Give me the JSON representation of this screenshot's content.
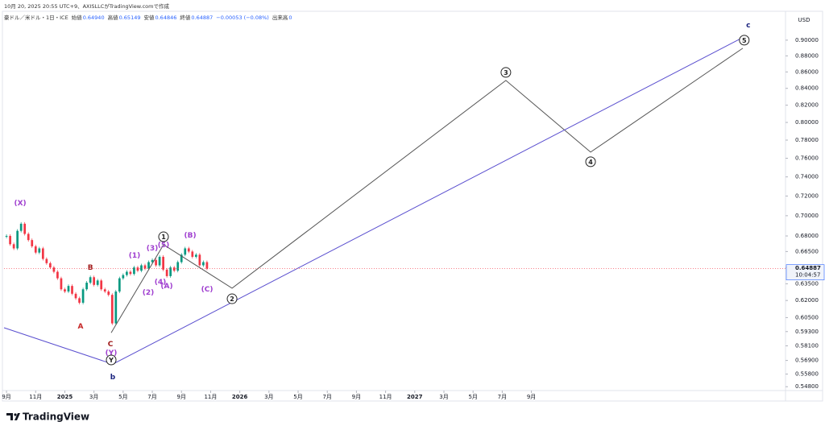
{
  "header": {
    "created": "10月 20, 2025 20:55 UTC+9、AXISLLCがTradingView.comで作成",
    "symbol": "豪ドル／米ドル・1日・ICE",
    "ohlc": [
      {
        "label": "始値",
        "value": "0.64940"
      },
      {
        "label": "高値",
        "value": "0.65149"
      },
      {
        "label": "安値",
        "value": "0.64846"
      },
      {
        "label": "終値",
        "value": "0.64887"
      },
      {
        "label": "",
        "value": "−0.00053 (−0.08%)"
      },
      {
        "label": "出来高",
        "value": "0"
      }
    ]
  },
  "brand": "TradingView",
  "chart_data": {
    "type": "candlestick",
    "currency": "USD",
    "log_scale": true,
    "up_color": "#089981",
    "down_color": "#f23645",
    "x": [
      8,
      8.25,
      8.5,
      8.75,
      9,
      9.25,
      9.5,
      9.75,
      10,
      10.25,
      10.5,
      10.75,
      11,
      11.25,
      11.5,
      11.75,
      12,
      12.25,
      12.5,
      12.75,
      13,
      13.25,
      13.5,
      13.75,
      14,
      14.25,
      14.5,
      14.75,
      15,
      15.25,
      15.5,
      15.75,
      16,
      16.25,
      16.5,
      16.75,
      17,
      17.25,
      17.5,
      17.75,
      18,
      18.25,
      18.5,
      18.75,
      19,
      19.25,
      19.5,
      19.75,
      20,
      20.25,
      20.5,
      20.75,
      21,
      21.25,
      21.5,
      21.75
    ],
    "values": [
      0.68,
      0.672,
      0.668,
      0.685,
      0.692,
      0.682,
      0.676,
      0.67,
      0.664,
      0.668,
      0.658,
      0.654,
      0.65,
      0.646,
      0.64,
      0.63,
      0.628,
      0.633,
      0.626,
      0.622,
      0.618,
      0.63,
      0.636,
      0.641,
      0.634,
      0.638,
      0.63,
      0.628,
      0.625,
      0.6,
      0.628,
      0.64,
      0.643,
      0.646,
      0.644,
      0.65,
      0.647,
      0.652,
      0.649,
      0.655,
      0.657,
      0.652,
      0.66,
      0.648,
      0.642,
      0.65,
      0.647,
      0.655,
      0.662,
      0.668,
      0.665,
      0.66,
      0.662,
      0.652,
      0.655,
      0.64887
    ],
    "last_price": 0.64887,
    "countdown": "10:04:57",
    "xlim": [
      7.83,
      61.43
    ],
    "ylim": [
      0.545,
      0.938
    ],
    "xticks": [
      {
        "value": 8,
        "label": "9月"
      },
      {
        "value": 10,
        "label": "11月"
      },
      {
        "value": 12,
        "label": "2025"
      },
      {
        "value": 14,
        "label": "3月"
      },
      {
        "value": 16,
        "label": "5月"
      },
      {
        "value": 18,
        "label": "7月"
      },
      {
        "value": 20,
        "label": "9月"
      },
      {
        "value": 22,
        "label": "11月"
      },
      {
        "value": 24,
        "label": "2026"
      },
      {
        "value": 26,
        "label": "3月"
      },
      {
        "value": 28,
        "label": "5月"
      },
      {
        "value": 30,
        "label": "7月"
      },
      {
        "value": 32,
        "label": "9月"
      },
      {
        "value": 34,
        "label": "11月"
      },
      {
        "value": 36,
        "label": "2027"
      },
      {
        "value": 38,
        "label": "3月"
      },
      {
        "value": 40,
        "label": "5月"
      },
      {
        "value": 42,
        "label": "7月"
      },
      {
        "value": 44,
        "label": "9月"
      }
    ],
    "yticks": [
      {
        "value": 0.9,
        "label": "0.90000"
      },
      {
        "value": 0.88,
        "label": "0.88000"
      },
      {
        "value": 0.86,
        "label": "0.86000"
      },
      {
        "value": 0.84,
        "label": "0.84000"
      },
      {
        "value": 0.82,
        "label": "0.82000"
      },
      {
        "value": 0.8,
        "label": "0.80000"
      },
      {
        "value": 0.78,
        "label": "0.78000"
      },
      {
        "value": 0.76,
        "label": "0.76000"
      },
      {
        "value": 0.74,
        "label": "0.74000"
      },
      {
        "value": 0.72,
        "label": "0.72000"
      },
      {
        "value": 0.7,
        "label": "0.70000"
      },
      {
        "value": 0.68,
        "label": "0.68000"
      },
      {
        "value": 0.665,
        "label": "0.66500"
      },
      {
        "value": 0.65,
        "label": "0.65000"
      },
      {
        "value": 0.635,
        "label": "0.63500"
      },
      {
        "value": 0.62,
        "label": "0.62000"
      },
      {
        "value": 0.605,
        "label": "0.60500"
      },
      {
        "value": 0.593,
        "label": "0.59300"
      },
      {
        "value": 0.581,
        "label": "0.58100"
      },
      {
        "value": 0.569,
        "label": "0.56900"
      },
      {
        "value": 0.558,
        "label": "0.55800"
      },
      {
        "value": 0.548,
        "label": "0.54800"
      }
    ],
    "drawings": [
      {
        "color": "#555555",
        "x": [
          15.18,
          18.77,
          23.47,
          42.25,
          48.06,
          58.5
        ],
        "y": [
          0.592,
          0.6716,
          0.631,
          0.8496,
          0.7667,
          0.8897
        ]
      },
      {
        "color": "#5a4fcf",
        "x": [
          7.83,
          15.29,
          58.66
        ],
        "y": [
          0.5963,
          0.566,
          0.905
        ]
      }
    ],
    "annotations": [
      {
        "text": "(X)",
        "color": "#a040d0",
        "x": 8.94,
        "y": 0.713
      },
      {
        "text": "B",
        "color": "#a01c1c",
        "x": 13.75,
        "y": 0.65
      },
      {
        "text": "A",
        "color": "#c62828",
        "x": 13.08,
        "y": 0.5976
      },
      {
        "text": "C",
        "color": "#a01c1c",
        "x": 15.13,
        "y": 0.5826
      },
      {
        "text": "(Y)",
        "color": "#a040d0",
        "x": 15.18,
        "y": 0.5752
      },
      {
        "text": "Y",
        "color": "#222222",
        "x": 15.18,
        "y": 0.5694,
        "circled": true
      },
      {
        "text": "b",
        "color": "#1a237e",
        "x": 15.29,
        "y": 0.5557
      },
      {
        "text": "(1)",
        "color": "#a040d0",
        "x": 16.78,
        "y": 0.6615
      },
      {
        "text": "(2)",
        "color": "#a040d0",
        "x": 17.72,
        "y": 0.6273
      },
      {
        "text": "(3)",
        "color": "#a040d0",
        "x": 18.0,
        "y": 0.6684
      },
      {
        "text": "(4)",
        "color": "#a040d0",
        "x": 18.55,
        "y": 0.6368
      },
      {
        "text": "(5)",
        "color": "#a040d0",
        "x": 18.77,
        "y": 0.6716
      },
      {
        "text": "1",
        "color": "#222222",
        "x": 18.77,
        "y": 0.6792,
        "circled": true
      },
      {
        "text": "(A)",
        "color": "#a040d0",
        "x": 18.99,
        "y": 0.633
      },
      {
        "text": "(B)",
        "color": "#a040d0",
        "x": 20.6,
        "y": 0.6808
      },
      {
        "text": "(C)",
        "color": "#a040d0",
        "x": 21.76,
        "y": 0.6302
      },
      {
        "text": "2",
        "color": "#222222",
        "x": 23.47,
        "y": 0.6215,
        "circled": true
      },
      {
        "text": "3",
        "color": "#222222",
        "x": 42.25,
        "y": 0.8594,
        "circled": true
      },
      {
        "text": "4",
        "color": "#222222",
        "x": 48.06,
        "y": 0.7562,
        "circled": true
      },
      {
        "text": "5",
        "color": "#222222",
        "x": 58.6,
        "y": 0.9,
        "circled": true
      },
      {
        "text": "c",
        "color": "#1a237e",
        "x": 58.88,
        "y": 0.92
      }
    ]
  }
}
